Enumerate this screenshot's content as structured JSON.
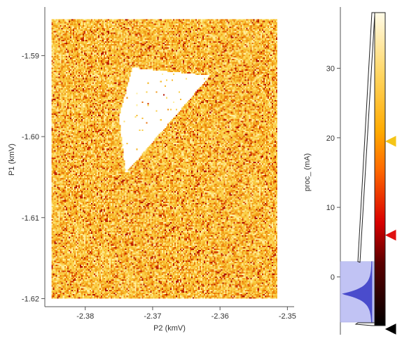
{
  "chart_data": {
    "type": "heatmap",
    "title": "",
    "xlabel": "P2 (kmV)",
    "ylabel": "P1 (kmV)",
    "xlim": [
      -2.386,
      -2.349
    ],
    "ylim": [
      -1.621,
      -1.584
    ],
    "image_extent": {
      "x": [
        -2.385,
        -2.3515
      ],
      "y": [
        -1.62,
        -1.5855
      ]
    },
    "x_ticks": [
      "-2.38",
      "-2.37",
      "-2.36",
      "-2.35"
    ],
    "x_tick_values": [
      -2.38,
      -2.37,
      -2.36,
      -2.35
    ],
    "y_ticks": [
      "-1.59",
      "-1.60",
      "-1.61",
      "-1.62"
    ],
    "y_tick_values": [
      -1.59,
      -1.6,
      -1.61,
      -1.62
    ],
    "background_level_mA": 5,
    "saturated_region": {
      "description": "triangle",
      "vertices": [
        [
          -2.375,
          -1.5975
        ],
        [
          -2.373,
          -1.5915
        ],
        [
          -2.3615,
          -1.5925
        ],
        [
          -2.374,
          -1.6045
        ]
      ]
    },
    "colorbar": {
      "label": "proc_ (mA)",
      "range": [
        -7,
        38
      ],
      "ticks": [
        "30",
        "20",
        "10",
        "0"
      ],
      "tick_values": [
        30,
        20,
        10,
        0
      ],
      "markers": [
        {
          "value": 19.5,
          "color": "#f5c518"
        },
        {
          "value": 6,
          "color": "#e01010"
        },
        {
          "value": -7.5,
          "color": "#000000"
        }
      ],
      "histogram_range": [
        -6.5,
        2.2
      ]
    }
  }
}
